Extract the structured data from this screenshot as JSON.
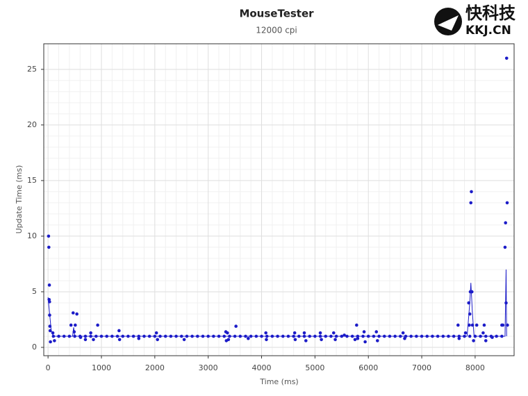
{
  "chart_data": {
    "type": "scatter",
    "title": "MouseTester",
    "subtitle": "12000 cpi",
    "x_label": "Time (ms)",
    "y_label": "Update Time (ms)",
    "logo": {
      "text": "快科技",
      "url": "KKJ.CN"
    },
    "xlim": [
      -80,
      8730
    ],
    "ylim": [
      -0.75,
      27.3
    ],
    "xticks": [
      0,
      1000,
      2000,
      3000,
      4000,
      5000,
      6000,
      7000,
      8000
    ],
    "yticks": [
      0,
      5,
      10,
      15,
      20,
      25
    ],
    "grid": true,
    "color": "#1c1cc8",
    "series": [
      {
        "mode": "markers",
        "x": [
          100,
          200,
          300,
          400,
          500,
          600,
          700,
          800,
          900,
          1000,
          1100,
          1200,
          1300,
          1400,
          1500,
          1600,
          1700,
          1800,
          1900,
          2000,
          2100,
          2200,
          2300,
          2400,
          2500,
          2600,
          2700,
          2800,
          2900,
          3000,
          3100,
          3200,
          3300,
          3400,
          3500,
          3600,
          3700,
          3800,
          3900,
          4000,
          4100,
          4200,
          4300,
          4400,
          4500,
          4600,
          4700,
          4800,
          4900,
          5000,
          5100,
          5200,
          5300,
          5400,
          5500,
          5600,
          5700,
          5800,
          5900,
          6000,
          6100,
          6200,
          6300,
          6400,
          6500,
          6600,
          6700,
          6800,
          6900,
          7000,
          7100,
          7200,
          7300,
          7400,
          7500,
          7600,
          7700,
          7800,
          7900,
          8000,
          8100,
          8200,
          8300,
          8400,
          8500
        ],
        "values": [
          1,
          1,
          1,
          1,
          1,
          1,
          1,
          1,
          1,
          1,
          1,
          1,
          1,
          1,
          1,
          1,
          1,
          1,
          1,
          1,
          1,
          1,
          1,
          1,
          1,
          1,
          1,
          1,
          1,
          1,
          1,
          1,
          1,
          1,
          1,
          1,
          1,
          1,
          1,
          1,
          1,
          1,
          1,
          1,
          1,
          1,
          1,
          1,
          1,
          1,
          1,
          1,
          1,
          1,
          1,
          1,
          1,
          1,
          1,
          1,
          1,
          1,
          1,
          1,
          1,
          1,
          1,
          1,
          1,
          1,
          1,
          1,
          1,
          1,
          1,
          1,
          1,
          1,
          1,
          1,
          1,
          1,
          1,
          1,
          1
        ]
      },
      {
        "mode": "markers",
        "x": [
          10,
          15,
          25,
          20,
          28,
          30,
          35,
          40,
          45,
          90,
          120,
          430,
          470,
          490,
          510,
          540,
          610,
          700,
          800,
          850,
          930,
          1330,
          1340,
          1700,
          2030,
          2050,
          2550,
          3330,
          3340,
          3360,
          3380,
          3520,
          3750,
          4080,
          4090,
          4620,
          4630,
          4800,
          4830,
          5100,
          5120,
          5350,
          5380,
          5550,
          5750,
          5780,
          5800,
          5920,
          5940,
          6150,
          6170,
          6650,
          6680,
          7680,
          7700,
          7820,
          7880,
          7890,
          7900,
          7910,
          7920,
          7930,
          7940,
          7950,
          7970,
          8030,
          8150,
          8170,
          8200,
          8320,
          8500,
          8520,
          8560,
          8570,
          8580,
          8590,
          8600,
          8605
        ],
        "values": [
          10,
          9,
          5.6,
          4.3,
          4.1,
          2.9,
          1.9,
          1.5,
          0.5,
          1.3,
          0.6,
          2,
          3.1,
          1.4,
          2,
          3,
          0.9,
          0.7,
          1.3,
          0.7,
          2,
          1.5,
          0.7,
          0.8,
          1.3,
          0.7,
          0.7,
          1.4,
          0.6,
          1.3,
          0.7,
          1.9,
          0.8,
          1.3,
          0.7,
          1.3,
          0.7,
          1.3,
          0.6,
          1.3,
          0.7,
          1.3,
          0.7,
          1.1,
          0.7,
          2,
          0.8,
          1.4,
          0.5,
          1.4,
          0.6,
          1.3,
          0.8,
          2,
          0.8,
          1.3,
          4,
          2,
          3,
          5,
          13,
          14,
          5,
          2,
          0.6,
          2,
          1.3,
          2,
          0.6,
          0.9,
          2,
          2,
          9,
          11.2,
          4,
          26,
          13,
          2
        ]
      },
      {
        "mode": "line",
        "x": [
          0,
          30,
          60,
          100,
          460,
          480,
          500,
          7850,
          7900,
          7920,
          7950,
          7980,
          8560,
          8580,
          8590
        ],
        "values": [
          4.5,
          3,
          1.5,
          1,
          1,
          1.8,
          1,
          1,
          4,
          5.8,
          3,
          1,
          1,
          7,
          1
        ]
      }
    ]
  }
}
